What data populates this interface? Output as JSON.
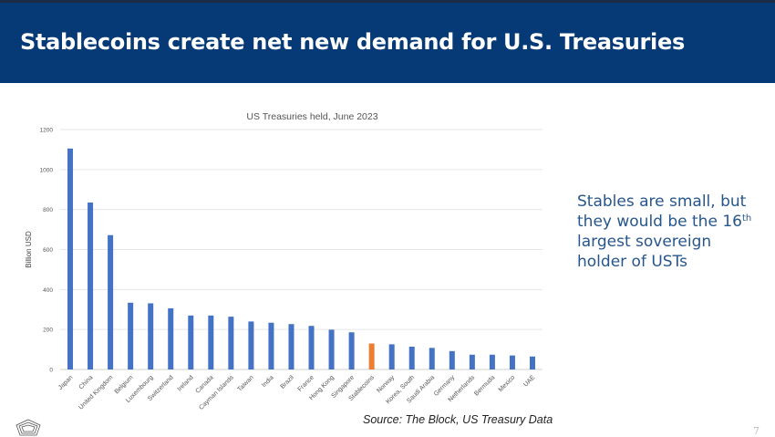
{
  "header": {
    "title": "Stablecoins create net new demand for U.S. Treasuries"
  },
  "side_text": {
    "line1": "Stables are small, but they would be the 16",
    "sup": "th",
    "line2": " largest sovereign holder of USTs"
  },
  "source": "Source: The Block, US Treasury Data",
  "page_number": "7",
  "logo_icon": "pentagon-logo-icon",
  "chart_data": {
    "type": "bar",
    "title": "US Treasuries held, June 2023",
    "xlabel": "",
    "ylabel": "Billion USD",
    "ylim": [
      0,
      1200
    ],
    "yticks": [
      0,
      200,
      400,
      600,
      800,
      1000,
      1200
    ],
    "grid": true,
    "categories": [
      "Japan",
      "China",
      "United Kingdom",
      "Belgium",
      "Luxembourg",
      "Switzerland",
      "Ireland",
      "Canada",
      "Cayman Islands",
      "Taiwan",
      "India",
      "Brazil",
      "France",
      "Hong Kong",
      "Singapore",
      "Stablecoins",
      "Norway",
      "Korea, South",
      "Saudi Arabia",
      "Germany",
      "Netherlands",
      "Bermuda",
      "Mexico",
      "UAE"
    ],
    "values": [
      1105,
      835,
      672,
      334,
      331,
      306,
      270,
      270,
      264,
      240,
      234,
      227,
      218,
      199,
      186,
      130,
      126,
      114,
      108,
      92,
      74,
      74,
      70,
      65
    ],
    "colors": {
      "default": "#4472c4",
      "highlight": "#ed7d31"
    },
    "highlight": "Stablecoins"
  }
}
